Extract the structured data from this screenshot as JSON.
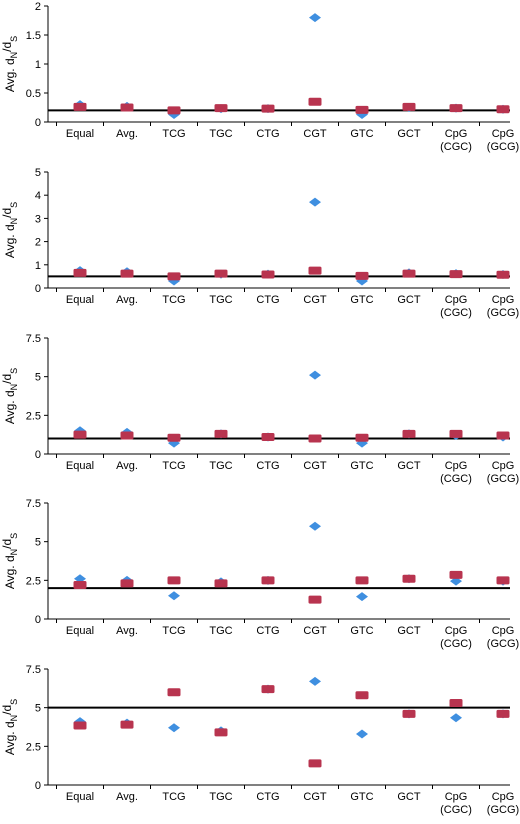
{
  "colors": {
    "diamond": "#3f8fe0",
    "square": "#b8344f",
    "axis": "#000000"
  },
  "categories": [
    [
      "Equal"
    ],
    [
      "Avg."
    ],
    [
      "TCG"
    ],
    [
      "TGC"
    ],
    [
      "CTG"
    ],
    [
      "CGT"
    ],
    [
      "GTC"
    ],
    [
      "GCT"
    ],
    [
      "CpG",
      "(CGC)"
    ],
    [
      "CpG",
      "(GCG)"
    ]
  ],
  "chart_data": [
    {
      "type": "scatter",
      "ylabel": "Avg. dN/dS",
      "ylim": [
        0,
        2
      ],
      "yticks": [
        0,
        0.5,
        1,
        1.5,
        2
      ],
      "ytick_labels": [
        "0",
        "0.5",
        "1",
        "1.5",
        "2"
      ],
      "reference_line": 0.2,
      "series": [
        {
          "marker": "diamond",
          "values": [
            0.3,
            0.27,
            0.13,
            0.23,
            0.23,
            1.8,
            0.13,
            0.25,
            0.24,
            0.22
          ]
        },
        {
          "marker": "square",
          "values": [
            0.26,
            0.25,
            0.2,
            0.24,
            0.23,
            0.35,
            0.21,
            0.26,
            0.24,
            0.22
          ]
        }
      ]
    },
    {
      "type": "scatter",
      "ylabel": "Avg. dN/dS",
      "ylim": [
        0,
        5
      ],
      "yticks": [
        0,
        1,
        2,
        3,
        4,
        5
      ],
      "ytick_labels": [
        "0",
        "1",
        "2",
        "3",
        "4",
        "5"
      ],
      "reference_line": 0.5,
      "series": [
        {
          "marker": "diamond",
          "values": [
            0.75,
            0.7,
            0.3,
            0.6,
            0.6,
            3.7,
            0.3,
            0.65,
            0.62,
            0.58
          ]
        },
        {
          "marker": "square",
          "values": [
            0.65,
            0.62,
            0.5,
            0.62,
            0.58,
            0.75,
            0.52,
            0.62,
            0.6,
            0.57
          ]
        }
      ]
    },
    {
      "type": "scatter",
      "ylabel": "Avg. dN/dS",
      "ylim": [
        0,
        7.5
      ],
      "yticks": [
        0,
        2.5,
        5,
        7.5
      ],
      "ytick_labels": [
        "0",
        "2.5",
        "5",
        "7.5"
      ],
      "reference_line": 1,
      "series": [
        {
          "marker": "diamond",
          "values": [
            1.5,
            1.4,
            0.7,
            1.3,
            1.1,
            5.1,
            0.7,
            1.3,
            1.2,
            1.1
          ]
        },
        {
          "marker": "square",
          "values": [
            1.25,
            1.2,
            1.05,
            1.3,
            1.1,
            1.0,
            1.05,
            1.3,
            1.3,
            1.2
          ]
        }
      ]
    },
    {
      "type": "scatter",
      "ylabel": "Avg. dN/dS",
      "ylim": [
        0,
        7.5
      ],
      "yticks": [
        0,
        2.5,
        5,
        7.5
      ],
      "ytick_labels": [
        "0",
        "2.5",
        "5",
        "7.5"
      ],
      "reference_line": 2,
      "series": [
        {
          "marker": "diamond",
          "values": [
            2.6,
            2.5,
            1.5,
            2.4,
            2.5,
            6.0,
            1.45,
            2.6,
            2.45,
            2.45
          ]
        },
        {
          "marker": "square",
          "values": [
            2.2,
            2.3,
            2.5,
            2.3,
            2.5,
            1.25,
            2.5,
            2.6,
            2.85,
            2.5
          ]
        }
      ]
    },
    {
      "type": "scatter",
      "ylabel": "Avg. dN/dS",
      "ylim": [
        0,
        7.5
      ],
      "yticks": [
        0,
        2.5,
        5,
        7.5
      ],
      "ytick_labels": [
        "0",
        "2.5",
        "5",
        "7.5"
      ],
      "reference_line": 5,
      "series": [
        {
          "marker": "diamond",
          "values": [
            4.1,
            4.0,
            3.7,
            3.5,
            6.2,
            6.7,
            3.3,
            4.6,
            4.35,
            4.6
          ]
        },
        {
          "marker": "square",
          "values": [
            3.85,
            3.9,
            6.0,
            3.4,
            6.2,
            1.4,
            5.8,
            4.6,
            5.3,
            4.6
          ]
        }
      ]
    }
  ]
}
